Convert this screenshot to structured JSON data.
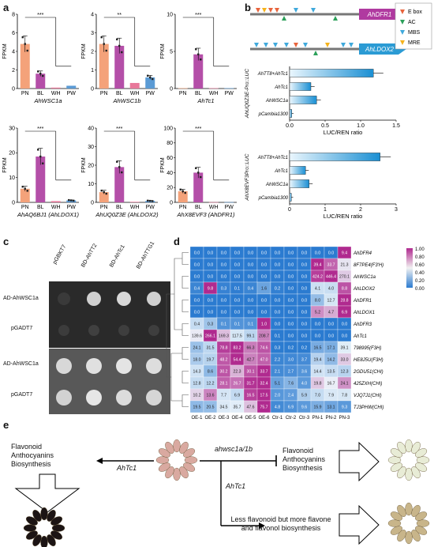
{
  "panel_labels": {
    "a": "a",
    "b": "b",
    "c": "c",
    "d": "d",
    "e": "e"
  },
  "panel_a": {
    "y_label": "FPKM",
    "x_ticks": [
      "PN",
      "BL",
      "WH",
      "PW"
    ],
    "bar_colors": [
      "#f4a27a",
      "#b44fa8",
      "#e8789a",
      "#5b9bd5"
    ],
    "subplots": [
      {
        "gene": "AhWSC1a",
        "ymax": 8,
        "yticks": [
          0,
          2,
          4,
          6,
          8
        ],
        "values": [
          4.8,
          1.6,
          0.1,
          0.3
        ],
        "sig": "***"
      },
      {
        "gene": "AhWSC1b",
        "ymax": 4,
        "yticks": [
          0,
          1,
          2,
          3,
          4
        ],
        "values": [
          2.4,
          2.3,
          0.3,
          0.6
        ],
        "sig": "**"
      },
      {
        "gene": "AhTc1",
        "ymax": 10,
        "yticks": [
          0,
          5,
          10
        ],
        "values": [
          0.05,
          4.6,
          0.05,
          0.05
        ],
        "sig": "***"
      },
      {
        "gene": "AhAQ6BJ1 (AhLDOX1)",
        "ymax": 30,
        "yticks": [
          0,
          10,
          20,
          30
        ],
        "values": [
          5.5,
          18.5,
          0.5,
          0.8
        ],
        "sig": "***"
      },
      {
        "gene": "AhUQ0Z3E (AhLDOX2)",
        "ymax": 40,
        "yticks": [
          0,
          10,
          20,
          30,
          40
        ],
        "values": [
          5.5,
          19,
          0.3,
          0.8
        ],
        "sig": "***"
      },
      {
        "gene": "AhX8EVF3 (AhDFR1)",
        "ymax": 100,
        "yticks": [
          0,
          20,
          40,
          60,
          80,
          100
        ],
        "values": [
          15,
          40,
          0.3,
          0.3
        ],
        "sig": "***"
      }
    ]
  },
  "panel_b": {
    "genes": [
      "AhDFR1",
      "AhLDOX2"
    ],
    "legend": [
      {
        "label": "E box",
        "color": "#e8643c"
      },
      {
        "label": "AC",
        "color": "#2ca05a"
      },
      {
        "label": "MBS",
        "color": "#3fa9dc"
      },
      {
        "label": "MRE",
        "color": "#f5b21b"
      }
    ],
    "chart1": {
      "ylabel": "AhUQ0Z3E-Pro::LUC",
      "xlabel": "LUC/REN ratio",
      "xticks": [
        "0.0",
        "0.5",
        "1.0",
        "1.5"
      ],
      "xmax": 1.5,
      "categories": [
        "AhTT8+AhTc1",
        "AhTc1",
        "AhWSC1a",
        "pCambia1300"
      ],
      "values": [
        1.18,
        0.3,
        0.38,
        0.03
      ]
    },
    "chart2": {
      "ylabel": "AhX8EVF3Pro::LUC",
      "xlabel": "LUC/REN ratio",
      "xticks": [
        "0",
        "1",
        "2",
        "3"
      ],
      "xmax": 3,
      "categories": [
        "AhTT8+AhTc1",
        "AhTc1",
        "AhWSC1a",
        "pCambia1300"
      ],
      "values": [
        2.55,
        0.45,
        0.55,
        0.05
      ]
    }
  },
  "panel_c": {
    "columns": [
      "pGBKT7",
      "BD-AhTT2",
      "BD-AhTc1",
      "BD-AhTTG1"
    ],
    "rows": [
      "AD-AhWSC1a",
      "pGADT7",
      "AD-AhWSC1a",
      "pGADT7"
    ]
  },
  "panel_d": {
    "columns": [
      "OE-1",
      "OE-2",
      "OE-3",
      "OE-4",
      "OE-5",
      "OE-6",
      "Ctr-1",
      "Ctr-2",
      "Ctr-3",
      "PN-1",
      "PN-2",
      "PN-3"
    ],
    "rows": [
      "AhDFR4",
      "8F7PE4(F3'H)",
      "AhWSC1a",
      "AhLDOX2",
      "AhDFR1",
      "AhLDOX1",
      "AhDFR3",
      "AhTc1",
      "798995(F3H)",
      "HE8J5U(F3H)",
      "2GDU51(CHI)",
      "425ZXH(CHI)",
      "VJQ7J1(CHI)",
      "TJ3PHW(CHI)"
    ],
    "values": [
      [
        "0.0",
        "0.0",
        "0.0",
        "0.0",
        "0.0",
        "0.0",
        "0.0",
        "0.0",
        "0.0",
        "0.0",
        "0.0",
        "9.4"
      ],
      [
        "0.0",
        "0.0",
        "0.0",
        "0.0",
        "0.0",
        "0.0",
        "0.0",
        "0.0",
        "0.0",
        "39.4",
        "33.7",
        "21.3"
      ],
      [
        "0.0",
        "0.0",
        "0.0",
        "0.0",
        "0.0",
        "0.0",
        "0.0",
        "0.0",
        "0.0",
        "424.2",
        "446.4",
        "270.1"
      ],
      [
        "0.4",
        "9.8",
        "0.3",
        "0.1",
        "0.4",
        "1.6",
        "0.2",
        "0.0",
        "0.0",
        "4.1",
        "4.0",
        "8.8"
      ],
      [
        "0.0",
        "0.0",
        "0.0",
        "0.0",
        "0.0",
        "0.0",
        "0.0",
        "0.0",
        "0.0",
        "8.0",
        "12.7",
        "28.8"
      ],
      [
        "0.0",
        "0.0",
        "0.0",
        "0.0",
        "0.0",
        "0.0",
        "0.0",
        "0.0",
        "0.0",
        "5.2",
        "4.7",
        "6.9"
      ],
      [
        "0.4",
        "0.3",
        "0.1",
        "0.1",
        "0.1",
        "1.0",
        "0.0",
        "0.0",
        "0.0",
        "0.0",
        "0.0",
        "0.0"
      ],
      [
        "139.6",
        "266.1",
        "169.3",
        "117.5",
        "99.1",
        "208.7",
        "0.1",
        "0.0",
        "0.0",
        "0.0",
        "0.0",
        "0.0"
      ],
      [
        "24.1",
        "31.5",
        "78.8",
        "83.2",
        "66.3",
        "74.6",
        "0.3",
        "0.2",
        "0.2",
        "16.5",
        "17.1",
        "39.1"
      ],
      [
        "18.0",
        "19.7",
        "48.2",
        "54.4",
        "42.7",
        "47.0",
        "2.2",
        "3.0",
        "3.7",
        "19.4",
        "14.2",
        "33.0"
      ],
      [
        "14.3",
        "8.6",
        "30.2",
        "22.3",
        "30.1",
        "33.7",
        "2.1",
        "2.7",
        "3.6",
        "14.4",
        "13.5",
        "12.3"
      ],
      [
        "12.8",
        "12.2",
        "28.1",
        "26.7",
        "31.7",
        "32.4",
        "5.1",
        "7.6",
        "4.0",
        "19.8",
        "16.7",
        "24.1"
      ],
      [
        "10.2",
        "13.6",
        "7.7",
        "6.9",
        "16.5",
        "17.5",
        "2.0",
        "2.4",
        "5.9",
        "7.0",
        "7.9",
        "7.8"
      ],
      [
        "19.5",
        "20.5",
        "34.5",
        "35.7",
        "47.6",
        "75.7",
        "4.8",
        "6.9",
        "9.6",
        "15.9",
        "13.1",
        "9.3"
      ]
    ],
    "scale_ticks": [
      "1.00",
      "0.80",
      "0.60",
      "0.40",
      "0.20",
      "0.00"
    ],
    "colors": {
      "high": "#b02a8f",
      "mid": "#f2f2f2",
      "low": "#2b7bd0"
    }
  },
  "panel_e": {
    "left_text": [
      "Flavonoid",
      "Anthocyanins",
      "Biosynthesis"
    ],
    "left_arrow_label": "AhTc1",
    "right_top_arrow_label": "ahwsc1a/1b",
    "right_text": [
      "Flavonoid",
      "Anthocyanins",
      "Biosynthesis"
    ],
    "down_arrow_label": "AhTc1",
    "bottom_text": [
      "Less flavonoid but more flavone",
      "and flavonol biosynthesis"
    ]
  }
}
